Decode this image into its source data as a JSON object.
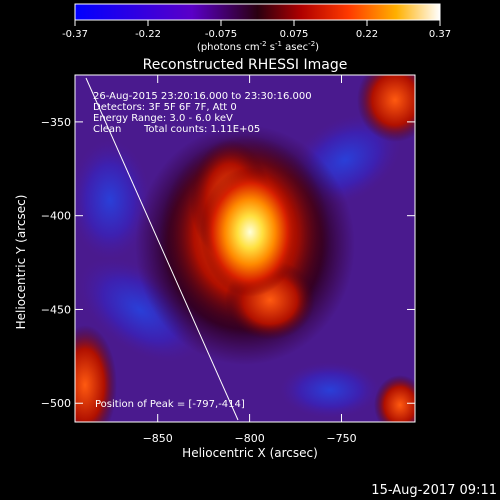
{
  "colorbar": {
    "ticks": [
      "-0.37",
      "-0.22",
      "-0.075",
      "0.075",
      "0.22",
      "0.37"
    ],
    "units_main": "(photons cm",
    "units_exp1": "-2",
    "units_mid1": " s",
    "units_exp2": "-1",
    "units_mid2": " asec",
    "units_exp3": "-2",
    "units_end": ")",
    "range": [
      -0.37,
      0.37
    ]
  },
  "plot": {
    "title": "Reconstructed RHESSI Image",
    "xlabel": "Heliocentric X (arcsec)",
    "ylabel": "Heliocentric Y (arcsec)",
    "xticks": [
      "-850",
      "-800",
      "-750"
    ],
    "yticks": [
      "-350",
      "-400",
      "-450",
      "-500"
    ],
    "xrange": [
      -895,
      -710
    ],
    "yrange": [
      -510,
      -325
    ]
  },
  "info": {
    "line1": "26-Aug-2015 23:20:16.000 to 23:30:16.000",
    "line2": "Detectors: 3F 5F 6F 7F, Att 0",
    "line3": "Energy Range: 3.0 - 6.0 keV",
    "line4_a": "Clean",
    "line4_b": "Total counts: 1.11E+05",
    "peak": "Position of Peak = [-797,-414]"
  },
  "timestamp": "15-Aug-2017 09:11",
  "colors": {
    "background": "#000000",
    "text": "#ffffff"
  }
}
